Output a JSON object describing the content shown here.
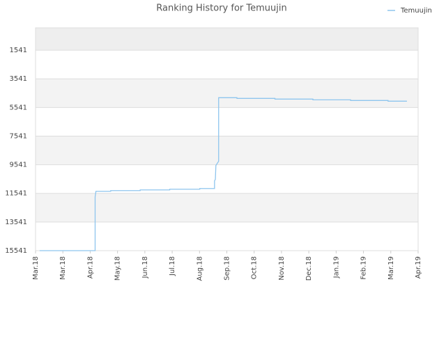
{
  "chart_data": {
    "type": "line",
    "title": "Ranking History for Temuujin",
    "x": [
      0.15,
      2.18,
      2.18,
      2.21,
      2.75,
      2.75,
      3.83,
      3.83,
      4.91,
      4.91,
      6.01,
      6.01,
      6.55,
      6.55,
      6.58,
      6.6,
      6.7,
      6.7,
      7.37,
      7.37,
      8.76,
      8.76,
      10.15,
      10.15,
      11.53,
      11.53,
      12.9,
      12.9,
      13.59
    ],
    "series": [
      {
        "name": "Temuujin",
        "color": "#8ec5ee",
        "values": [
          15541,
          15541,
          11785,
          11395,
          11395,
          11346,
          11346,
          11297,
          11297,
          11248,
          11248,
          11200,
          11200,
          10663,
          10565,
          9590,
          9297,
          4858,
          4858,
          4907,
          4907,
          4956,
          4956,
          5005,
          5005,
          5053,
          5053,
          5102,
          5102
        ]
      }
    ],
    "xlim": [
      0,
      14
    ],
    "xticks": [
      {
        "value": 0,
        "label": "Mar.18"
      },
      {
        "value": 1,
        "label": "Mar.18"
      },
      {
        "value": 2,
        "label": "Apr.18"
      },
      {
        "value": 3,
        "label": "May.18"
      },
      {
        "value": 4,
        "label": "Jun.18"
      },
      {
        "value": 5,
        "label": "Jul.18"
      },
      {
        "value": 6,
        "label": "Aug.18"
      },
      {
        "value": 7,
        "label": "Sep.18"
      },
      {
        "value": 8,
        "label": "Oct.18"
      },
      {
        "value": 9,
        "label": "Nov.18"
      },
      {
        "value": 10,
        "label": "Dec.18"
      },
      {
        "value": 11,
        "label": "Jan.19"
      },
      {
        "value": 12,
        "label": "Feb.19"
      },
      {
        "value": 13,
        "label": "Mar.19"
      },
      {
        "value": 14,
        "label": "Apr.19"
      }
    ],
    "ylim": [
      15541,
      -20
    ],
    "yticks": [
      1541,
      3541,
      5541,
      7541,
      9541,
      11541,
      13541,
      15541
    ],
    "grid": true,
    "legend": "top-right"
  }
}
